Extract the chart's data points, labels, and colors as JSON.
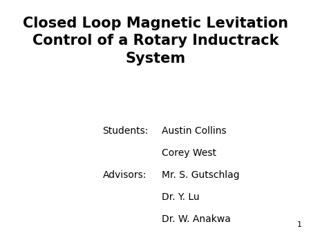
{
  "title_line1": "Closed Loop Magnetic Levitation",
  "title_line2": "Control of a Rotary Inductrack",
  "title_line3": "System",
  "title_fontsize": 15,
  "title_fontweight": "bold",
  "title_color": "#000000",
  "students_label": "Students:",
  "student1": "Austin Collins",
  "student2": "Corey West",
  "advisors_label": "Advisors:",
  "advisor1": "Mr. S. Gutschlag",
  "advisor2": "Dr. Y. Lu",
  "advisor3": "Dr. W. Anakwa",
  "body_fontsize": 10,
  "body_color": "#000000",
  "background_color": "#ffffff",
  "slide_number": "1",
  "slide_number_fontsize": 8,
  "font_family": "DejaVu Sans"
}
